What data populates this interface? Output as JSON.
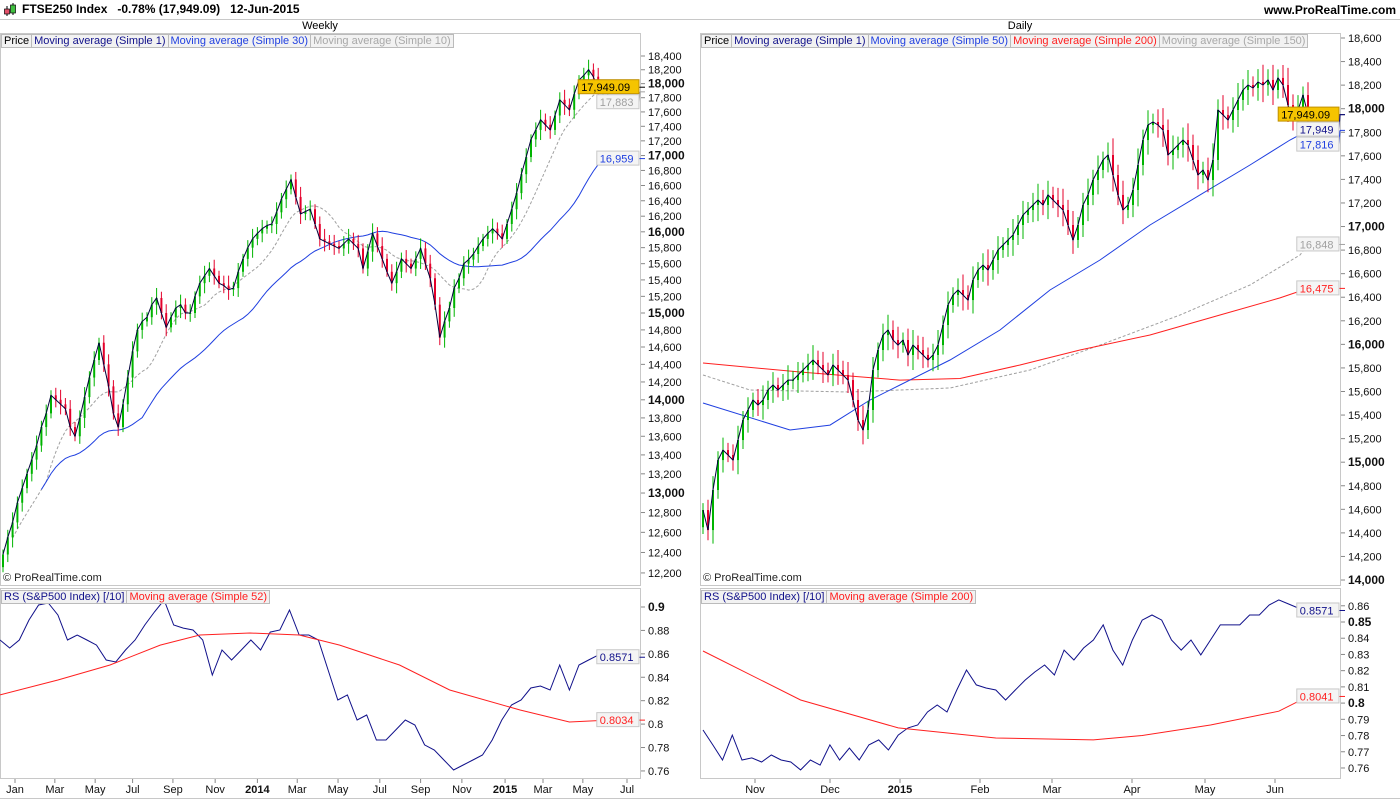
{
  "header": {
    "instrument": "FTSE250 Index",
    "change": "-0.78%",
    "close": "(17,949.09)",
    "date": "12-Jun-2015",
    "website": "www.ProRealTime.com"
  },
  "watermark": "© ProRealTime.com",
  "colors": {
    "up": "#00b400",
    "down": "#e4002b",
    "ma1": "#00003c",
    "blue": "#1f3fe0",
    "red": "#ff2020",
    "gray": "#a0a0a0",
    "rs": "#10108a",
    "tag": "#f5c400"
  },
  "panels": {
    "weekly": {
      "title": "Weekly",
      "legend": [
        "Price",
        "Moving average (Simple 1)",
        "Moving average (Simple 30)",
        "Moving average (Simple 10)"
      ],
      "rs_legend": [
        "RS (S&P500 Index) [/10]",
        "Moving average (Simple 52)"
      ],
      "tags": {
        "last": "17,949.09",
        "ma10": "17,883",
        "ma30": "16,959",
        "rs": "0.8571",
        "rs_ma": "0.8034"
      }
    },
    "daily": {
      "title": "Daily",
      "legend": [
        "Price",
        "Moving average (Simple 1)",
        "Moving average (Simple 50)",
        "Moving average (Simple 200)",
        "Moving average (Simple 150)"
      ],
      "rs_legend": [
        "RS (S&P500 Index) [/10]",
        "Moving average (Simple 200)"
      ],
      "tags": {
        "last": "17,949.09",
        "ma1": "17,949",
        "ma50": "17,816",
        "ma150": "16,848",
        "ma200": "16,475",
        "rs": "0.8571",
        "rs_ma": "0.8041"
      }
    }
  },
  "chart_data": [
    {
      "type": "candlestick",
      "title": "Weekly",
      "yscale": "log",
      "ylim": [
        12100,
        18700
      ],
      "yticks": [
        "18,400",
        "18,200",
        "18,000",
        "17,800",
        "17,600",
        "17,400",
        "17,200",
        "17,000",
        "16,800",
        "16,600",
        "16,400",
        "16,200",
        "16,000",
        "15,800",
        "15,600",
        "15,400",
        "15,200",
        "15,000",
        "14,800",
        "14,600",
        "14,400",
        "14,200",
        "14,000",
        "13,800",
        "13,600",
        "13,400",
        "13,200",
        "13,000",
        "12,800",
        "12,600",
        "12,400",
        "12,200"
      ],
      "xticks": [
        [
          "Jan",
          2.5
        ],
        [
          "Mar",
          10.8
        ],
        [
          "May",
          19.2
        ],
        [
          "Jul",
          27
        ],
        [
          "Sep",
          35.4
        ],
        [
          "Nov",
          44.2
        ],
        [
          "2014",
          53
        ],
        [
          "Mar",
          61.3
        ],
        [
          "May",
          69.8
        ],
        [
          "Jul",
          78.5
        ],
        [
          "Sep",
          87
        ],
        [
          "Nov",
          95.6
        ],
        [
          "2015",
          104.6
        ],
        [
          "Mar",
          112.5
        ],
        [
          "May",
          120.8
        ],
        [
          "Jul",
          130
        ]
      ],
      "close": [
        12380,
        12550,
        12700,
        12900,
        13050,
        13200,
        13350,
        13500,
        13700,
        13850,
        14050,
        14000,
        13950,
        13900,
        13700,
        13600,
        13800,
        14030,
        14250,
        14450,
        14650,
        14400,
        14150,
        13850,
        13700,
        13950,
        14250,
        14550,
        14800,
        14900,
        14950,
        15100,
        15180,
        15000,
        14830,
        14950,
        15060,
        15100,
        15000,
        15000,
        15200,
        15360,
        15450,
        15540,
        15450,
        15360,
        15330,
        15280,
        15300,
        15500,
        15660,
        15800,
        15910,
        15980,
        16040,
        16080,
        16100,
        16250,
        16420,
        16550,
        16680,
        16450,
        16230,
        16260,
        16290,
        16100,
        15910,
        15880,
        15850,
        15820,
        15790,
        15850,
        15910,
        15850,
        15790,
        15540,
        15750,
        15980,
        15820,
        15660,
        15500,
        15360,
        15500,
        15660,
        15600,
        15540,
        15660,
        15790,
        15600,
        15420,
        15100,
        14710,
        14900,
        15060,
        15300,
        15420,
        15600,
        15650,
        15720,
        15820,
        15910,
        15980,
        16040,
        15980,
        15910,
        16100,
        16290,
        16500,
        16750,
        16980,
        17220,
        17350,
        17490,
        17420,
        17350,
        17550,
        17770,
        17700,
        17630,
        17850,
        18050,
        18120,
        18200,
        18100,
        17910,
        17930,
        17949
      ],
      "ma_periods": {
        "blue": 30,
        "gray_dashed": 10
      }
    },
    {
      "type": "line",
      "title": "RS (S&P500 Index) [/10] weekly",
      "ylim": [
        0.755,
        0.91
      ],
      "yticks": [
        "0.9",
        "0.88",
        "0.86",
        "0.84",
        "0.82",
        "0.8",
        "0.78",
        "0.76"
      ],
      "rs": [
        0.8718,
        0.865,
        0.8718,
        0.8889,
        0.9017,
        0.9034,
        0.8932,
        0.8718,
        0.8761,
        0.8718,
        0.8675,
        0.8547,
        0.853,
        0.8633,
        0.8718,
        0.8846,
        0.8957,
        0.906,
        0.8846,
        0.882,
        0.8804,
        0.8718,
        0.8419,
        0.8633,
        0.8547,
        0.8633,
        0.8718,
        0.8633,
        0.8786,
        0.8804,
        0.8974,
        0.8761,
        0.8761,
        0.8718,
        0.8462,
        0.8206,
        0.8249,
        0.8035,
        0.8078,
        0.7864,
        0.7864,
        0.795,
        0.8035,
        0.7992,
        0.7822,
        0.7779,
        0.7693,
        0.7608,
        0.7651,
        0.7693,
        0.7736,
        0.7864,
        0.8035,
        0.8163,
        0.8206,
        0.8308,
        0.8325,
        0.8291,
        0.8505,
        0.8291,
        0.8505,
        0.8547,
        0.859,
        0.8571
      ],
      "ma52": [
        [
          0,
          0.8249
        ],
        [
          6,
          0.8377
        ],
        [
          11.4,
          0.8505
        ],
        [
          16.6,
          0.8675
        ],
        [
          20.7,
          0.8761
        ],
        [
          25.9,
          0.8778
        ],
        [
          31,
          0.8761
        ],
        [
          35.2,
          0.8675
        ],
        [
          41.4,
          0.8505
        ],
        [
          46.6,
          0.8291
        ],
        [
          53.9,
          0.812
        ],
        [
          59,
          0.8018
        ],
        [
          63,
          0.8034
        ]
      ]
    },
    {
      "type": "candlestick",
      "title": "Daily",
      "yscale": "linear",
      "ylim": [
        13980,
        18620
      ],
      "yticks": [
        "18,600",
        "18,400",
        "18,200",
        "18,000",
        "17,800",
        "17,600",
        "17,400",
        "17,200",
        "17,000",
        "16,800",
        "16,600",
        "16,400",
        "16,200",
        "16,000",
        "15,800",
        "15,600",
        "15,400",
        "15,200",
        "15,000",
        "14,800",
        "14,600",
        "14,400",
        "14,200",
        "14,000"
      ],
      "xticks": [
        [
          "Nov",
          10.4
        ],
        [
          "Dec",
          25.4
        ],
        [
          "2015",
          39.4
        ],
        [
          "Feb",
          55.4
        ],
        [
          "Mar",
          69.8
        ],
        [
          "Apr",
          85.8
        ],
        [
          "May",
          100.4
        ],
        [
          "Jun",
          114.4
        ]
      ],
      "close": [
        14594,
        14424,
        14764,
        15018,
        15103,
        15061,
        15018,
        15188,
        15358,
        15443,
        15528,
        15485,
        15528,
        15613,
        15655,
        15613,
        15655,
        15697,
        15697,
        15740,
        15782,
        15825,
        15867,
        15825,
        15782,
        15740,
        15825,
        15782,
        15740,
        15697,
        15528,
        15358,
        15273,
        15443,
        15782,
        15952,
        16079,
        16122,
        16037,
        15994,
        16037,
        15910,
        15994,
        15952,
        15910,
        15867,
        15910,
        15994,
        16164,
        16334,
        16419,
        16461,
        16419,
        16376,
        16546,
        16631,
        16673,
        16631,
        16716,
        16801,
        16843,
        16886,
        16928,
        17013,
        17098,
        17140,
        17183,
        17225,
        17183,
        17268,
        17225,
        17183,
        17140,
        17013,
        16886,
        17013,
        17183,
        17268,
        17395,
        17480,
        17565,
        17607,
        17437,
        17268,
        17140,
        17183,
        17310,
        17522,
        17734,
        17862,
        17887,
        17862,
        17819,
        17607,
        17649,
        17692,
        17734,
        17692,
        17565,
        17437,
        17480,
        17395,
        17565,
        17989,
        17947,
        17904,
        17989,
        18074,
        18159,
        18201,
        18176,
        18227,
        18201,
        18244,
        18159,
        18261,
        18201,
        18031,
        17904,
        17989,
        18116,
        17949
      ],
      "ma50": [
        [
          0,
          15502
        ],
        [
          17.4,
          15273
        ],
        [
          25.4,
          15315
        ],
        [
          33.4,
          15528
        ],
        [
          39.4,
          15655
        ],
        [
          49.4,
          15867
        ],
        [
          59.4,
          16122
        ],
        [
          69.4,
          16461
        ],
        [
          79.4,
          16716
        ],
        [
          89.4,
          17013
        ],
        [
          99.4,
          17268
        ],
        [
          109.4,
          17522
        ],
        [
          117.4,
          17734
        ],
        [
          121,
          17816
        ]
      ],
      "ma200": [
        [
          0,
          15842
        ],
        [
          19.4,
          15765
        ],
        [
          39.4,
          15697
        ],
        [
          51.4,
          15710
        ],
        [
          63.4,
          15825
        ],
        [
          75.4,
          15952
        ],
        [
          89.4,
          16079
        ],
        [
          103.4,
          16249
        ],
        [
          115.4,
          16394
        ],
        [
          121,
          16475
        ]
      ],
      "ma150": [
        [
          0,
          15740
        ],
        [
          9.4,
          15613
        ],
        [
          29.4,
          15596
        ],
        [
          49.4,
          15630
        ],
        [
          65.4,
          15782
        ],
        [
          79.4,
          15994
        ],
        [
          95.4,
          16249
        ],
        [
          109.4,
          16504
        ],
        [
          119.4,
          16758
        ],
        [
          121,
          16848
        ]
      ]
    },
    {
      "type": "line",
      "title": "RS (S&P500 Index) [/10] daily",
      "ylim": [
        0.755,
        0.865
      ],
      "yticks": [
        "0.86",
        "0.85",
        "0.84",
        "0.83",
        "0.82",
        "0.81",
        "0.8",
        "0.79",
        "0.78",
        "0.77",
        "0.76"
      ],
      "rs": [
        0.7834,
        0.7742,
        0.7649,
        0.7803,
        0.7649,
        0.7662,
        0.7637,
        0.768,
        0.7649,
        0.7637,
        0.7588,
        0.7649,
        0.7618,
        0.7742,
        0.7649,
        0.7723,
        0.7649,
        0.7742,
        0.7773,
        0.7711,
        0.7803,
        0.7847,
        0.7865,
        0.7945,
        0.7988,
        0.7945,
        0.8081,
        0.8204,
        0.8112,
        0.8093,
        0.8081,
        0.8019,
        0.8081,
        0.8142,
        0.8192,
        0.8235,
        0.8173,
        0.8327,
        0.8266,
        0.834,
        0.8389,
        0.8482,
        0.8327,
        0.8235,
        0.8389,
        0.8512,
        0.8543,
        0.8512,
        0.8389,
        0.8327,
        0.8389,
        0.8297,
        0.8389,
        0.8482,
        0.8482,
        0.8482,
        0.8543,
        0.8543,
        0.8605,
        0.8636,
        0.8611,
        0.8586,
        0.8571
      ],
      "ma200": [
        [
          0,
          0.8321
        ],
        [
          10,
          0.8019
        ],
        [
          20,
          0.7847
        ],
        [
          30,
          0.7785
        ],
        [
          40,
          0.7773
        ],
        [
          45,
          0.78
        ],
        [
          52,
          0.7865
        ],
        [
          59,
          0.795
        ],
        [
          62,
          0.8041
        ]
      ]
    }
  ]
}
